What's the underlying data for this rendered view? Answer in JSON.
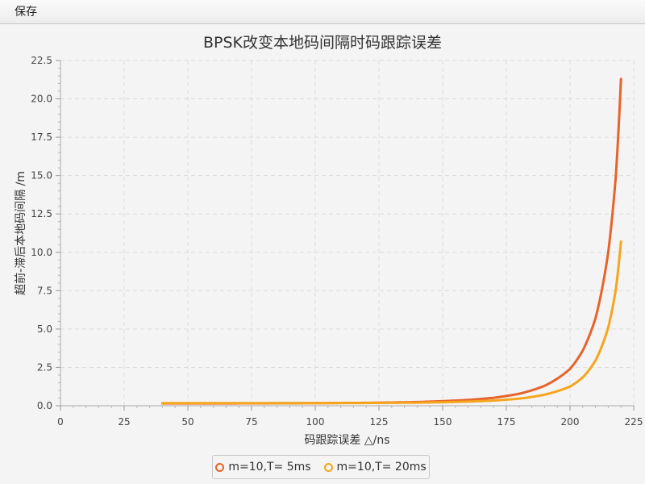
{
  "menu": {
    "save_label": "保存"
  },
  "colors": {
    "series1": "#e8632b",
    "series2": "#f6a51e"
  },
  "chart_data": {
    "type": "line",
    "title": "BPSK改变本地码间隔时码跟踪误差",
    "xlabel": "码跟踪误差 △/ns",
    "ylabel": "超前-滞后本地码间隔 /m",
    "xlim": [
      0,
      225
    ],
    "ylim": [
      0,
      22.5
    ],
    "xticks": [
      "0",
      "25",
      "50",
      "75",
      "100",
      "125",
      "150",
      "175",
      "200",
      "225"
    ],
    "yticks": [
      "0.0",
      "2.5",
      "5.0",
      "7.5",
      "10.0",
      "12.5",
      "15.0",
      "17.5",
      "20.0",
      "22.5"
    ],
    "grid": true,
    "legend_position": "bottom-center",
    "series": [
      {
        "name": "m=10,T= 5ms",
        "x": [
          40,
          60,
          80,
          100,
          120,
          140,
          150,
          160,
          170,
          180,
          190,
          200,
          205,
          210,
          215,
          218,
          220
        ],
        "y": [
          0.15,
          0.15,
          0.16,
          0.17,
          0.19,
          0.24,
          0.3,
          0.38,
          0.52,
          0.78,
          1.3,
          2.4,
          3.6,
          5.7,
          10.0,
          15.0,
          21.3
        ]
      },
      {
        "name": "m=10,T= 20ms",
        "x": [
          40,
          60,
          80,
          100,
          120,
          140,
          150,
          160,
          170,
          180,
          190,
          200,
          205,
          210,
          215,
          218,
          220
        ],
        "y": [
          0.17,
          0.17,
          0.17,
          0.17,
          0.18,
          0.2,
          0.23,
          0.27,
          0.34,
          0.46,
          0.72,
          1.25,
          1.85,
          2.95,
          5.1,
          7.6,
          10.7
        ]
      }
    ]
  }
}
